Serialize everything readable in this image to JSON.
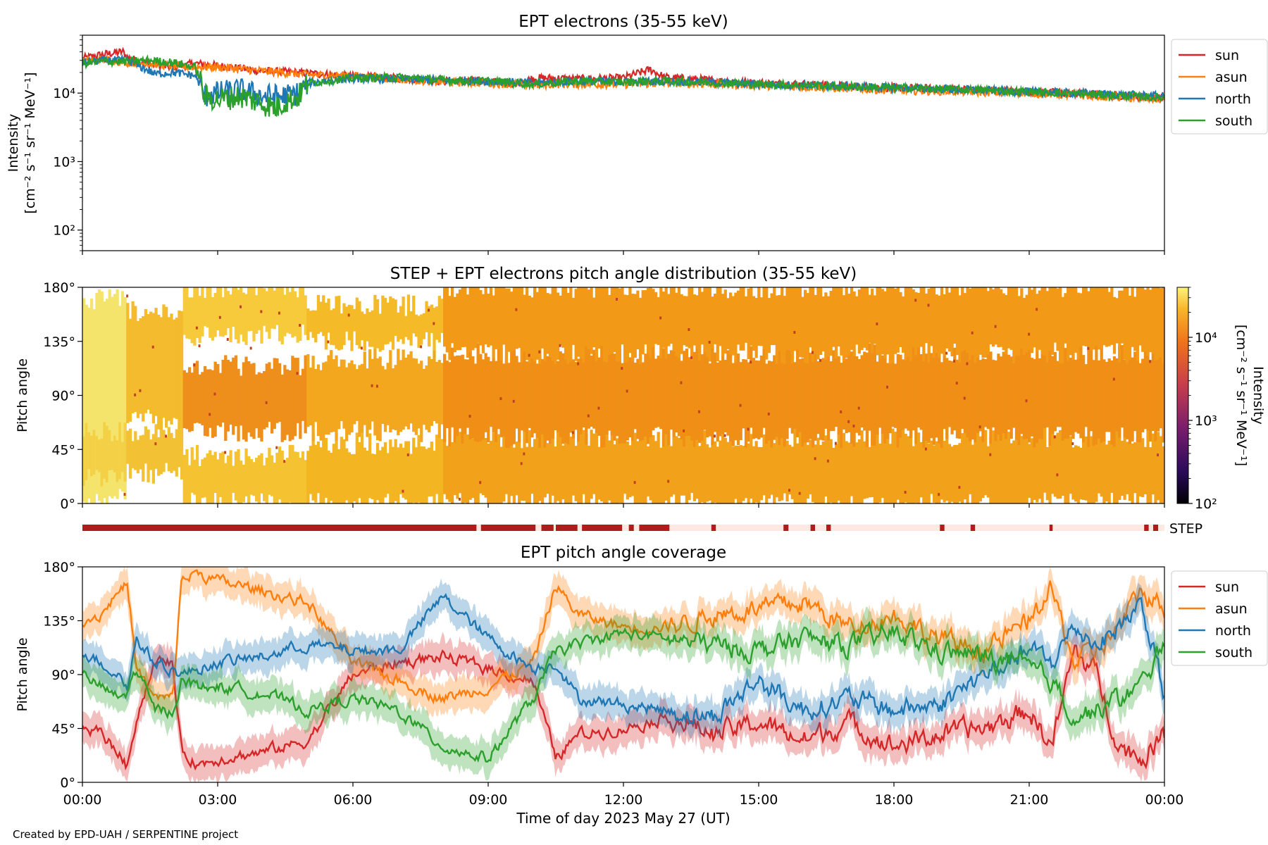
{
  "footer": "Created by EPD-UAH / SERPENTINE project",
  "colors": {
    "sun": "#d62728",
    "asun": "#ff7f0e",
    "north": "#1f77b4",
    "south": "#2ca02c",
    "step_on": "#b01c1c",
    "step_off": "#fde8e2"
  },
  "chart_data": [
    {
      "type": "line",
      "title": "EPT electrons (35-55 keV)",
      "ylabel": [
        "Intensity",
        "[cm⁻² s⁻¹ sr⁻¹ MeV⁻¹]"
      ],
      "y_scale": "log",
      "ylim": [
        50,
        70000
      ],
      "ytick_labels": [
        "10²",
        "10³",
        "10⁴"
      ],
      "ytick_values": [
        100,
        1000,
        10000
      ],
      "xlim_hours": [
        0,
        24
      ],
      "legend": {
        "placement": "outside-right-top",
        "entries": [
          "sun",
          "asun",
          "north",
          "south"
        ]
      },
      "series": [
        {
          "name": "sun",
          "x_hours": [
            0,
            0.5,
            0.9,
            1.0,
            1.5,
            2.0,
            2.5,
            3.0,
            4.0,
            5.0,
            6.0,
            7.0,
            8.0,
            9.0,
            9.6,
            10.0,
            10.5,
            11.0,
            12.0,
            12.6,
            12.9,
            13.5,
            15.0,
            18.0,
            21.0,
            24.0
          ],
          "values": [
            32000,
            37000,
            40000,
            33000,
            26000,
            24000,
            27000,
            25000,
            21000,
            19500,
            17500,
            16500,
            15000,
            15000,
            13500,
            16500,
            16500,
            16000,
            16500,
            22000,
            17000,
            16000,
            14000,
            12000,
            10500,
            8500
          ]
        },
        {
          "name": "asun",
          "x_hours": [
            0,
            0.5,
            1.0,
            1.5,
            2.0,
            2.5,
            3.0,
            4.0,
            5.0,
            6.0,
            7.0,
            8.0,
            9.0,
            10.0,
            10.5,
            12.0,
            13.0,
            15.0,
            18.0,
            21.0,
            24.0
          ],
          "values": [
            29000,
            31000,
            28000,
            27000,
            25000,
            24000,
            24000,
            21000,
            18500,
            18000,
            16000,
            14500,
            14000,
            13000,
            13500,
            13500,
            14000,
            13000,
            11000,
            10000,
            8000
          ]
        },
        {
          "name": "north",
          "x_hours": [
            0,
            0.5,
            1.0,
            1.3,
            1.6,
            2.0,
            2.5,
            2.7,
            3.0,
            3.5,
            4.0,
            4.5,
            4.8,
            5.0,
            6.0,
            7.0,
            8.0,
            9.0,
            10.0,
            11.0,
            12.0,
            13.0,
            15.0,
            18.0,
            21.0,
            24.0
          ],
          "values": [
            28000,
            30000,
            30000,
            24000,
            19000,
            20000,
            18000,
            9000,
            10000,
            11000,
            9000,
            9000,
            10000,
            14000,
            16500,
            16000,
            15500,
            15000,
            14000,
            15000,
            14500,
            15000,
            13500,
            12000,
            10500,
            9000
          ]
        },
        {
          "name": "south",
          "x_hours": [
            0,
            0.5,
            1.0,
            1.5,
            2.0,
            2.5,
            2.7,
            3.0,
            3.5,
            4.0,
            4.3,
            4.5,
            4.8,
            5.0,
            6.0,
            7.0,
            8.0,
            9.0,
            10.0,
            11.0,
            12.0,
            13.0,
            15.0,
            18.0,
            21.0,
            24.0
          ],
          "values": [
            27000,
            29000,
            29000,
            30000,
            28000,
            24000,
            9000,
            8000,
            9000,
            7000,
            6000,
            7500,
            9000,
            14000,
            16500,
            17000,
            15500,
            15000,
            13500,
            15000,
            14500,
            15000,
            13500,
            12000,
            10500,
            8500
          ]
        }
      ]
    },
    {
      "type": "heatmap",
      "title": "STEP + EPT electrons pitch angle distribution (35-55 keV)",
      "ylabel": "Pitch angle",
      "ytick_labels": [
        "0°",
        "45°",
        "90°",
        "135°",
        "180°"
      ],
      "ytick_values": [
        0,
        45,
        90,
        135,
        180
      ],
      "xlim_hours": [
        0,
        24
      ],
      "colorbar": {
        "label": [
          "Intensity",
          "[cm⁻² s⁻¹ sr⁻¹ MeV⁻¹]"
        ],
        "scale": "log",
        "range": [
          100,
          40000
        ],
        "tick_labels": [
          "10²",
          "10³",
          "10⁴"
        ],
        "tick_values": [
          100,
          1000,
          10000
        ]
      }
    },
    {
      "type": "timeline",
      "label": "STEP",
      "on_intervals_hours": [
        [
          0,
          8.74
        ],
        [
          8.84,
          10.05
        ],
        [
          10.18,
          10.45
        ],
        [
          10.5,
          10.98
        ],
        [
          11.08,
          11.97
        ],
        [
          12.12,
          12.23
        ],
        [
          12.35,
          13.02
        ],
        [
          13.95,
          14.05
        ],
        [
          15.55,
          15.66
        ],
        [
          16.15,
          16.25
        ],
        [
          16.5,
          16.6
        ],
        [
          19.02,
          19.12
        ],
        [
          19.7,
          19.8
        ],
        [
          21.45,
          21.52
        ],
        [
          23.55,
          23.65
        ],
        [
          23.75,
          23.86
        ]
      ]
    },
    {
      "type": "line",
      "title": "EPT pitch angle coverage",
      "ylabel": "Pitch angle",
      "xlabel": "Time of day 2023 May 27 (UT)",
      "xtick_labels": [
        "00:00",
        "03:00",
        "06:00",
        "09:00",
        "12:00",
        "15:00",
        "18:00",
        "21:00",
        "00:00"
      ],
      "xtick_hours": [
        0,
        3,
        6,
        9,
        12,
        15,
        18,
        21,
        24
      ],
      "ytick_labels": [
        "0°",
        "45°",
        "90°",
        "135°",
        "180°"
      ],
      "ytick_values": [
        0,
        45,
        90,
        135,
        180
      ],
      "ylim": [
        0,
        180
      ],
      "legend": {
        "placement": "outside-right-top",
        "entries": [
          "sun",
          "asun",
          "north",
          "south"
        ]
      },
      "series": [
        {
          "name": "sun",
          "x_hours": [
            0,
            0.4,
            0.8,
            1.0,
            1.2,
            1.6,
            2.0,
            2.2,
            2.6,
            3.0,
            4.0,
            5.0,
            6.0,
            7.0,
            8.0,
            9.0,
            10.0,
            10.5,
            11.0,
            12.0,
            13.0,
            14.0,
            15.0,
            16.0,
            17.0,
            18.0,
            19.0,
            20.0,
            21.0,
            21.5,
            22.0,
            22.5,
            23.0,
            23.5,
            24.0
          ],
          "values": [
            45,
            42,
            25,
            12,
            55,
            100,
            100,
            25,
            15,
            20,
            25,
            35,
            90,
            100,
            105,
            95,
            85,
            20,
            40,
            45,
            55,
            40,
            50,
            35,
            50,
            30,
            40,
            45,
            60,
            30,
            110,
            90,
            30,
            20,
            40
          ]
        },
        {
          "name": "asun",
          "x_hours": [
            0,
            0.4,
            0.8,
            1.0,
            1.2,
            1.6,
            2.0,
            2.2,
            2.6,
            3.0,
            4.0,
            5.0,
            6.0,
            7.0,
            8.0,
            9.0,
            10.0,
            10.5,
            11.0,
            12.0,
            13.0,
            14.0,
            15.0,
            16.0,
            17.0,
            18.0,
            19.0,
            20.0,
            21.0,
            21.5,
            22.0,
            22.5,
            23.0,
            23.5,
            24.0
          ],
          "values": [
            135,
            140,
            160,
            165,
            95,
            70,
            70,
            170,
            175,
            168,
            160,
            150,
            100,
            85,
            70,
            80,
            100,
            165,
            140,
            130,
            130,
            140,
            145,
            150,
            130,
            140,
            120,
            110,
            135,
            160,
            100,
            110,
            130,
            160,
            145
          ]
        },
        {
          "name": "north",
          "x_hours": [
            0,
            0.4,
            0.8,
            1.0,
            1.2,
            1.6,
            2.0,
            2.2,
            2.6,
            3.0,
            4.0,
            5.0,
            6.0,
            7.0,
            8.0,
            9.0,
            10.0,
            10.5,
            11.0,
            12.0,
            13.0,
            14.0,
            15.0,
            16.0,
            17.0,
            18.0,
            19.0,
            20.0,
            21.0,
            21.5,
            22.0,
            22.5,
            23.0,
            23.5,
            24.0
          ],
          "values": [
            110,
            100,
            90,
            80,
            120,
            100,
            95,
            90,
            95,
            100,
            105,
            115,
            110,
            110,
            155,
            120,
            95,
            100,
            70,
            65,
            60,
            55,
            85,
            60,
            70,
            60,
            65,
            90,
            110,
            100,
            130,
            115,
            130,
            150,
            70
          ]
        },
        {
          "name": "south",
          "x_hours": [
            0,
            0.4,
            0.8,
            1.0,
            1.2,
            1.6,
            2.0,
            2.2,
            2.6,
            3.0,
            4.0,
            5.0,
            6.0,
            7.0,
            8.0,
            9.0,
            10.0,
            10.5,
            11.0,
            12.0,
            13.0,
            14.0,
            15.0,
            16.0,
            17.0,
            18.0,
            19.0,
            20.0,
            21.0,
            21.5,
            22.0,
            22.5,
            23.0,
            23.5,
            24.0
          ],
          "values": [
            90,
            80,
            70,
            75,
            95,
            60,
            60,
            85,
            80,
            80,
            75,
            60,
            70,
            60,
            30,
            20,
            70,
            110,
            115,
            125,
            120,
            115,
            110,
            120,
            115,
            125,
            110,
            105,
            95,
            85,
            55,
            60,
            70,
            80,
            120
          ]
        }
      ]
    }
  ]
}
